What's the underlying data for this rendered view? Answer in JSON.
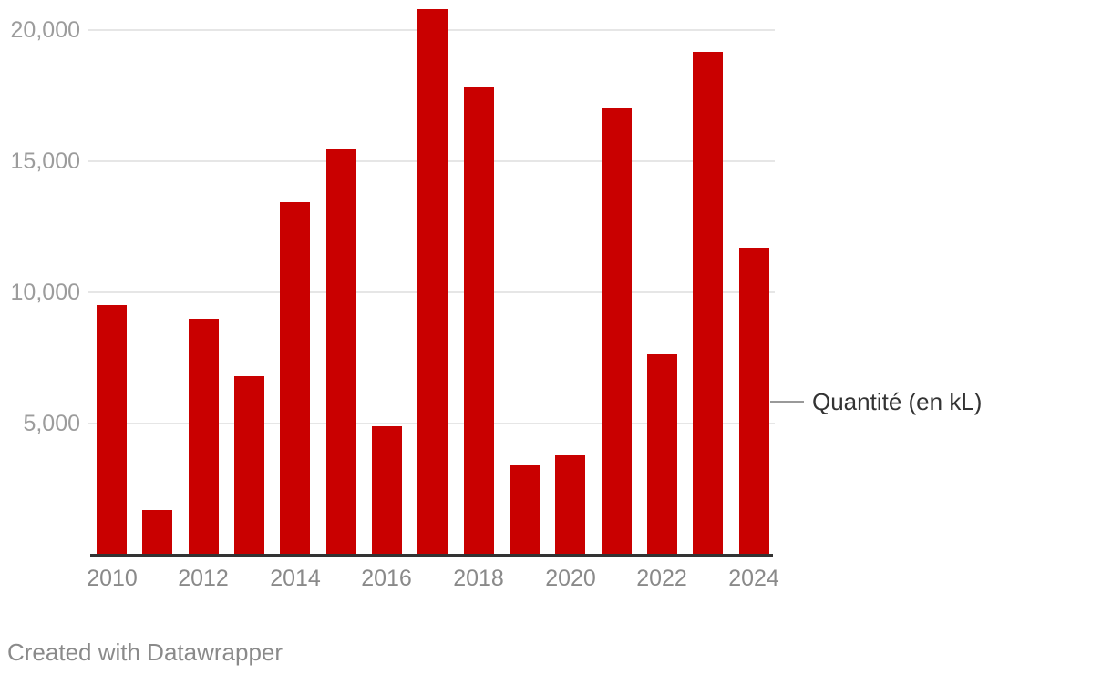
{
  "chart": {
    "legend": {
      "label": "Quantité (en kL)"
    },
    "footer": {
      "text": "Created with Datawrapper"
    },
    "colors": {
      "bar": "#c90000",
      "grid": "#e6e6e6",
      "axis_line": "#333333",
      "y_tick_label": "#9c9c9c",
      "x_tick_label": "#8a8a8a",
      "legend_text": "#333333",
      "legend_connector": "#999999",
      "footer_text": "#8a8a8a",
      "background": "#ffffff"
    }
  },
  "chart_data": {
    "type": "bar",
    "title": "",
    "xlabel": "",
    "ylabel": "",
    "categories": [
      "2010",
      "2011",
      "2012",
      "2013",
      "2014",
      "2015",
      "2016",
      "2017",
      "2018",
      "2019",
      "2020",
      "2021",
      "2022",
      "2023",
      "2024"
    ],
    "series": [
      {
        "name": "Quantité (en kL)",
        "values": [
          9500,
          1700,
          9000,
          6800,
          13450,
          15450,
          4900,
          20800,
          17800,
          3400,
          3800,
          17000,
          7650,
          19150,
          11700
        ]
      }
    ],
    "y_axis": {
      "range": [
        0,
        21000
      ],
      "gridlines": true,
      "ticks": [
        {
          "value": 5000,
          "label": "5,000"
        },
        {
          "value": 10000,
          "label": "10,000"
        },
        {
          "value": 15000,
          "label": "15,000"
        },
        {
          "value": 20000,
          "label": "20,000"
        }
      ]
    },
    "x_axis": {
      "tick_labels": [
        "2010",
        "2012",
        "2014",
        "2016",
        "2018",
        "2020",
        "2022",
        "2024"
      ],
      "tick_step": 2
    },
    "legend_position": "right-of-last-bar",
    "grid": "horizontal-only"
  }
}
